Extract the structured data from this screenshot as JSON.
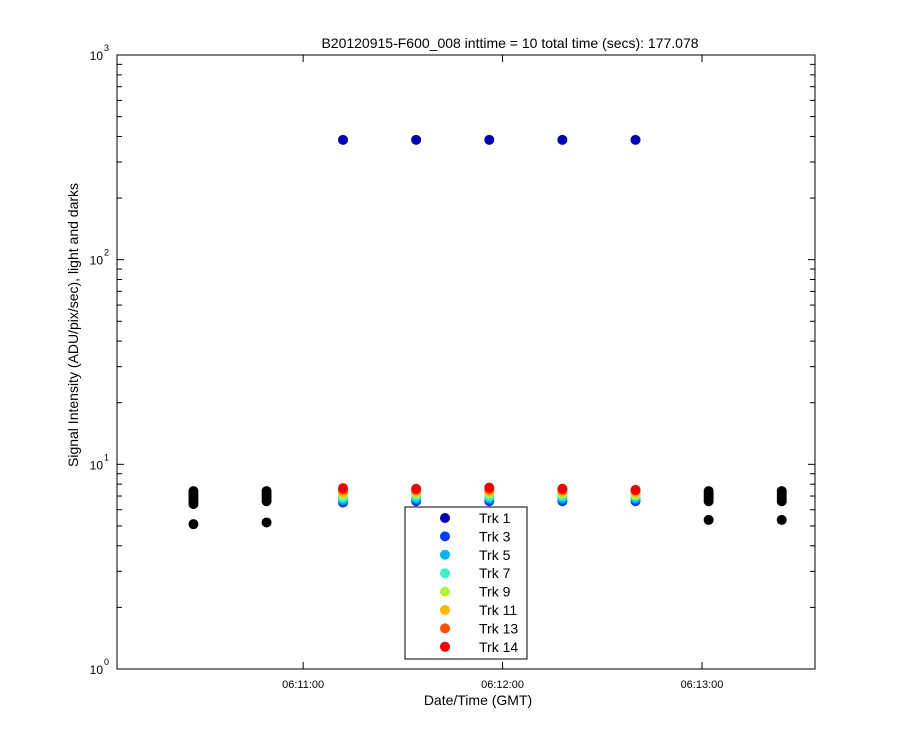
{
  "chart_data": {
    "type": "scatter",
    "title": "B20120915-F600_008 inttime = 10 total time (secs): 177.078",
    "xlabel": "Date/Time (GMT)",
    "ylabel": "Signal Intensity (ADU/pix/sec), light and darks",
    "y_scale": "log",
    "ylim": [
      1,
      1000
    ],
    "xlim": [
      "06:10:04",
      "06:13:34"
    ],
    "x_ticks": [
      "06:11:00",
      "06:12:00",
      "06:13:00"
    ],
    "y_ticks": [
      {
        "base": "10",
        "exp": "0",
        "value": 1
      },
      {
        "base": "10",
        "exp": "1",
        "value": 10
      },
      {
        "base": "10",
        "exp": "2",
        "value": 100
      },
      {
        "base": "10",
        "exp": "3",
        "value": 1000
      }
    ],
    "legend_position": "bottom-center",
    "grid": false,
    "series": [
      {
        "name": "Trk 1",
        "color": "#0000b3",
        "x": [
          "06:11:12",
          "06:11:34",
          "06:11:56",
          "06:12:18",
          "06:12:40"
        ],
        "y": [
          385,
          385,
          385,
          385,
          385
        ]
      },
      {
        "name": "Trk 3",
        "color": "#0a3cf5",
        "x": [
          "06:11:12",
          "06:11:34",
          "06:11:56",
          "06:12:18",
          "06:12:40"
        ],
        "y": [
          6.5,
          6.6,
          6.6,
          6.6,
          6.6
        ]
      },
      {
        "name": "Trk 5",
        "color": "#00b4f0",
        "x": [
          "06:11:12",
          "06:11:34",
          "06:11:56",
          "06:12:18",
          "06:12:40"
        ],
        "y": [
          6.7,
          6.8,
          6.8,
          6.8,
          6.8
        ]
      },
      {
        "name": "Trk 7",
        "color": "#3cf0c8",
        "x": [
          "06:11:12",
          "06:11:34",
          "06:11:56",
          "06:12:18",
          "06:12:40"
        ],
        "y": [
          6.9,
          7.0,
          7.0,
          7.0,
          7.0
        ]
      },
      {
        "name": "Trk 9",
        "color": "#b4f03c",
        "x": [
          "06:11:12",
          "06:11:34",
          "06:11:56",
          "06:12:18",
          "06:12:40"
        ],
        "y": [
          7.1,
          7.2,
          7.2,
          7.2,
          7.1
        ]
      },
      {
        "name": "Trk 11",
        "color": "#ffb400",
        "x": [
          "06:11:12",
          "06:11:34",
          "06:11:56",
          "06:12:18",
          "06:12:40"
        ],
        "y": [
          7.3,
          7.35,
          7.4,
          7.35,
          7.3
        ]
      },
      {
        "name": "Trk 13",
        "color": "#ff5000",
        "x": [
          "06:11:12",
          "06:11:34",
          "06:11:56",
          "06:12:18",
          "06:12:40"
        ],
        "y": [
          7.5,
          7.5,
          7.55,
          7.5,
          7.45
        ]
      },
      {
        "name": "Trk 14",
        "color": "#f00000",
        "x": [
          "06:11:12",
          "06:11:34",
          "06:11:56",
          "06:12:18",
          "06:12:40"
        ],
        "y": [
          7.65,
          7.6,
          7.7,
          7.6,
          7.5
        ]
      }
    ],
    "dark_points": {
      "color": "#000000",
      "x": [
        "06:10:27",
        "06:10:49",
        "06:13:02",
        "06:13:24"
      ],
      "y_upper": [
        [
          7.4,
          7.2,
          7.0,
          6.8,
          6.6,
          6.4
        ],
        [
          7.4,
          7.2,
          7.0,
          6.8,
          6.6
        ],
        [
          7.4,
          7.2,
          7.0,
          6.8,
          6.6
        ],
        [
          7.4,
          7.2,
          7.0,
          6.8,
          6.6
        ]
      ],
      "y_lower": [
        5.1,
        5.2,
        5.35,
        5.35
      ]
    }
  }
}
